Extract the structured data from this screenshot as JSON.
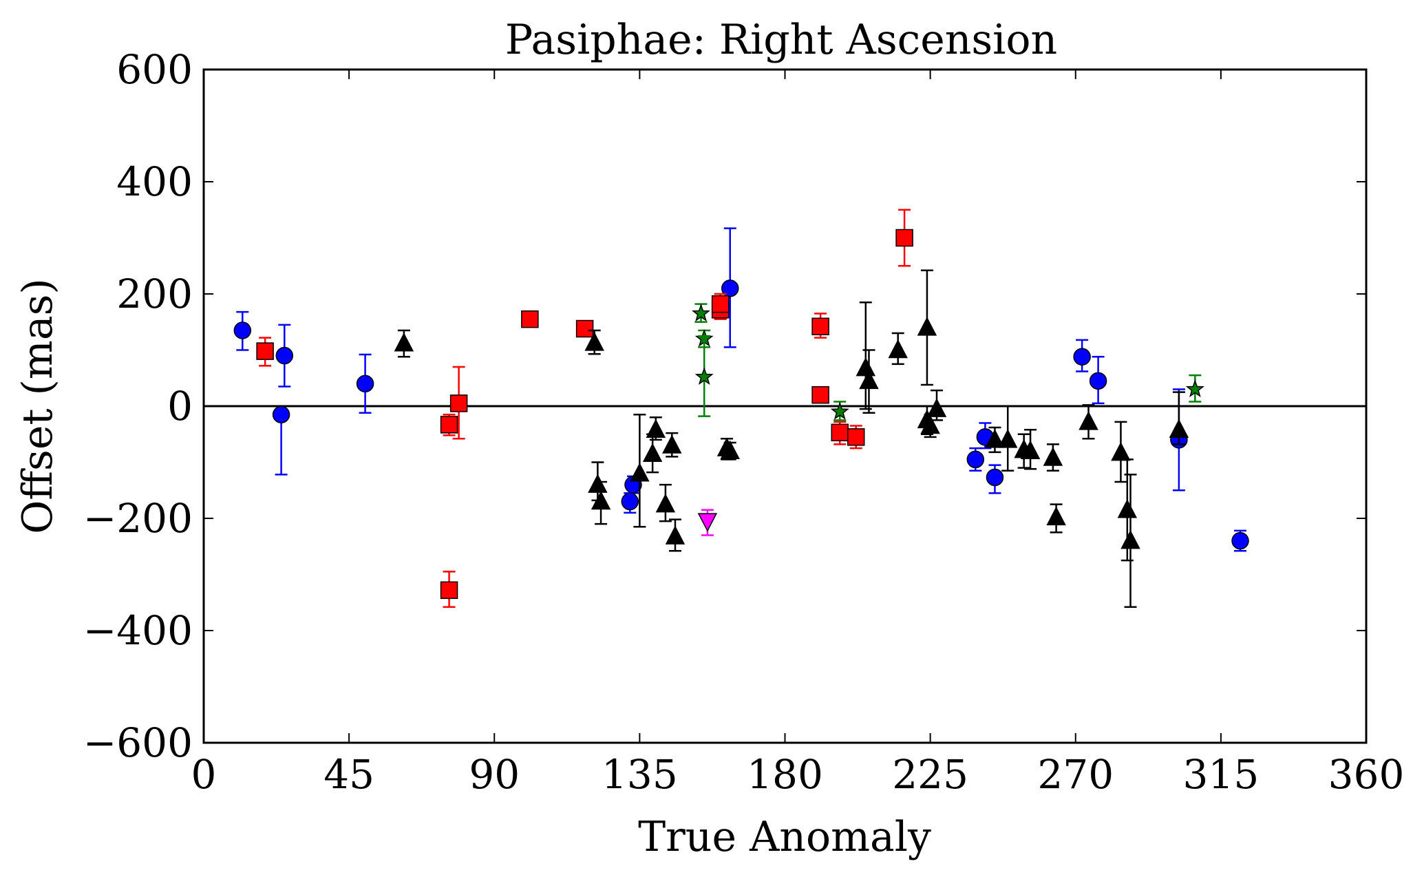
{
  "chart_data": {
    "type": "scatter",
    "title": "Pasiphae: Right Ascension",
    "xlabel": "True Anomaly",
    "ylabel": "Offset (mas)",
    "xlim": [
      0,
      360
    ],
    "ylim": [
      -600,
      600
    ],
    "xticks": [
      0,
      45,
      90,
      135,
      180,
      225,
      270,
      315,
      360
    ],
    "yticks": [
      -600,
      -400,
      -200,
      0,
      200,
      400,
      600
    ],
    "ytick_labels": [
      "−600",
      "−400",
      "−200",
      "0",
      "200",
      "400",
      "600"
    ],
    "zero_line": true,
    "grid": false,
    "series": [
      {
        "marker": "circle",
        "color": "#0000ff",
        "points": [
          {
            "x": 12,
            "y": 135,
            "lo": 100,
            "hi": 168
          },
          {
            "x": 24,
            "y": -15,
            "lo": -122,
            "hi": -15
          },
          {
            "x": 25,
            "y": 90,
            "lo": 35,
            "hi": 145
          },
          {
            "x": 50,
            "y": 40,
            "lo": -12,
            "hi": 92
          },
          {
            "x": 132,
            "y": -170,
            "lo": -190,
            "hi": -155
          },
          {
            "x": 133,
            "y": -140,
            "lo": -155,
            "hi": -125
          },
          {
            "x": 163,
            "y": 210,
            "lo": 105,
            "hi": 317
          },
          {
            "x": 239,
            "y": -95,
            "lo": -115,
            "hi": -75
          },
          {
            "x": 242,
            "y": -55,
            "lo": -75,
            "hi": -30
          },
          {
            "x": 245,
            "y": -127,
            "lo": -155,
            "hi": -105
          },
          {
            "x": 272,
            "y": 88,
            "lo": 62,
            "hi": 118
          },
          {
            "x": 277,
            "y": 45,
            "lo": 5,
            "hi": 88
          },
          {
            "x": 302,
            "y": -60,
            "lo": -150,
            "hi": 30
          },
          {
            "x": 321,
            "y": -240,
            "lo": -258,
            "hi": -222
          }
        ]
      },
      {
        "marker": "square",
        "color": "#ff0000",
        "points": [
          {
            "x": 19,
            "y": 98,
            "lo": 72,
            "hi": 122
          },
          {
            "x": 76,
            "y": -33,
            "lo": -52,
            "hi": -15
          },
          {
            "x": 76,
            "y": -328,
            "lo": -358,
            "hi": -295
          },
          {
            "x": 79,
            "y": 5,
            "lo": -58,
            "hi": 70
          },
          {
            "x": 101,
            "y": 155,
            "lo": 148,
            "hi": 162
          },
          {
            "x": 118,
            "y": 138,
            "lo": 130,
            "hi": 147
          },
          {
            "x": 160,
            "y": 172,
            "lo": 155,
            "hi": 190
          },
          {
            "x": 160,
            "y": 182,
            "lo": 165,
            "hi": 200
          },
          {
            "x": 191,
            "y": 142,
            "lo": 122,
            "hi": 165
          },
          {
            "x": 191,
            "y": 20,
            "lo": 12,
            "hi": 28
          },
          {
            "x": 197,
            "y": -47,
            "lo": -68,
            "hi": -28
          },
          {
            "x": 202,
            "y": -55,
            "lo": -75,
            "hi": -35
          },
          {
            "x": 217,
            "y": 300,
            "lo": 250,
            "hi": 350
          }
        ]
      },
      {
        "marker": "triangle-up",
        "color": "#000000",
        "points": [
          {
            "x": 62,
            "y": 112,
            "lo": 88,
            "hi": 135
          },
          {
            "x": 121,
            "y": 113,
            "lo": 93,
            "hi": 135
          },
          {
            "x": 122,
            "y": -140,
            "lo": -168,
            "hi": -100
          },
          {
            "x": 123,
            "y": -170,
            "lo": -210,
            "hi": -135
          },
          {
            "x": 135,
            "y": -120,
            "lo": -215,
            "hi": -15
          },
          {
            "x": 139,
            "y": -85,
            "lo": -118,
            "hi": -50
          },
          {
            "x": 140,
            "y": -42,
            "lo": -60,
            "hi": -20
          },
          {
            "x": 143,
            "y": -175,
            "lo": -205,
            "hi": -140
          },
          {
            "x": 145,
            "y": -70,
            "lo": -90,
            "hi": -48
          },
          {
            "x": 146,
            "y": -232,
            "lo": -258,
            "hi": -202
          },
          {
            "x": 162,
            "y": -75,
            "lo": -95,
            "hi": -58
          },
          {
            "x": 163,
            "y": -80,
            "lo": -95,
            "hi": -65
          },
          {
            "x": 205,
            "y": 68,
            "lo": -5,
            "hi": 185
          },
          {
            "x": 206,
            "y": 45,
            "lo": -12,
            "hi": 100
          },
          {
            "x": 215,
            "y": 100,
            "lo": 75,
            "hi": 130
          },
          {
            "x": 224,
            "y": 140,
            "lo": 38,
            "hi": 242
          },
          {
            "x": 224,
            "y": -25,
            "lo": -50,
            "hi": 0
          },
          {
            "x": 225,
            "y": -35,
            "lo": -55,
            "hi": -15
          },
          {
            "x": 227,
            "y": -5,
            "lo": -25,
            "hi": 28
          },
          {
            "x": 245,
            "y": -60,
            "lo": -82,
            "hi": -38
          },
          {
            "x": 249,
            "y": -60,
            "lo": -115,
            "hi": 0
          },
          {
            "x": 254,
            "y": -78,
            "lo": -110,
            "hi": -50
          },
          {
            "x": 256,
            "y": -80,
            "lo": -112,
            "hi": -42
          },
          {
            "x": 263,
            "y": -92,
            "lo": -115,
            "hi": -68
          },
          {
            "x": 264,
            "y": -198,
            "lo": -225,
            "hi": -175
          },
          {
            "x": 274,
            "y": -28,
            "lo": -58,
            "hi": 2
          },
          {
            "x": 284,
            "y": -83,
            "lo": -135,
            "hi": -28
          },
          {
            "x": 286,
            "y": -185,
            "lo": -275,
            "hi": -95
          },
          {
            "x": 287,
            "y": -240,
            "lo": -358,
            "hi": -122
          },
          {
            "x": 302,
            "y": -42,
            "lo": -68,
            "hi": 25
          }
        ]
      },
      {
        "marker": "star",
        "color": "#008000",
        "points": [
          {
            "x": 154,
            "y": 165,
            "lo": 150,
            "hi": 182
          },
          {
            "x": 155,
            "y": 120,
            "lo": 105,
            "hi": 135
          },
          {
            "x": 155,
            "y": 52,
            "lo": -18,
            "hi": 125
          },
          {
            "x": 197,
            "y": -10,
            "lo": -25,
            "hi": 8
          },
          {
            "x": 307,
            "y": 30,
            "lo": 8,
            "hi": 55
          }
        ]
      },
      {
        "marker": "triangle-down",
        "color": "#ff00ff",
        "points": [
          {
            "x": 156,
            "y": -205,
            "lo": -230,
            "hi": -185
          }
        ]
      }
    ]
  }
}
